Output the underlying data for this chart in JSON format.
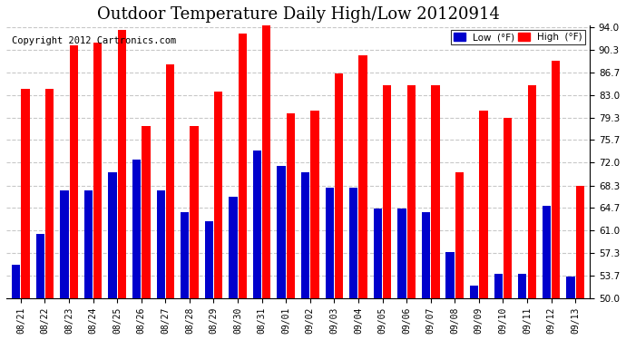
{
  "title": "Outdoor Temperature Daily High/Low 20120914",
  "copyright": "Copyright 2012 Cartronics.com",
  "dates": [
    "08/21",
    "08/22",
    "08/23",
    "08/24",
    "08/25",
    "08/26",
    "08/27",
    "08/28",
    "08/29",
    "08/30",
    "08/31",
    "09/01",
    "09/02",
    "09/03",
    "09/04",
    "09/05",
    "09/06",
    "09/07",
    "09/08",
    "09/09",
    "09/10",
    "09/11",
    "09/12",
    "09/13"
  ],
  "highs": [
    84.0,
    84.0,
    91.0,
    91.5,
    93.5,
    78.0,
    88.0,
    78.0,
    83.5,
    93.0,
    94.5,
    80.0,
    80.5,
    86.5,
    89.5,
    84.5,
    84.5,
    84.5,
    70.5,
    80.5,
    79.3,
    84.5,
    88.5,
    68.3
  ],
  "lows": [
    55.5,
    60.5,
    67.5,
    67.5,
    70.5,
    72.5,
    67.5,
    64.0,
    62.5,
    66.5,
    74.0,
    71.5,
    70.5,
    68.0,
    68.0,
    64.5,
    64.5,
    64.0,
    57.5,
    52.0,
    54.0,
    54.0,
    65.0,
    53.5
  ],
  "high_color": "#ff0000",
  "low_color": "#0000cc",
  "ylim_min": 50.0,
  "ylim_max": 94.0,
  "yticks": [
    50.0,
    53.7,
    57.3,
    61.0,
    64.7,
    68.3,
    72.0,
    75.7,
    79.3,
    83.0,
    86.7,
    90.3,
    94.0
  ],
  "bg_color": "#ffffff",
  "plot_bg_color": "#ffffff",
  "grid_color": "#c8c8c8",
  "title_fontsize": 13,
  "copyright_fontsize": 7.5,
  "legend_low_label": "Low  (°F)",
  "legend_high_label": "High  (°F)"
}
